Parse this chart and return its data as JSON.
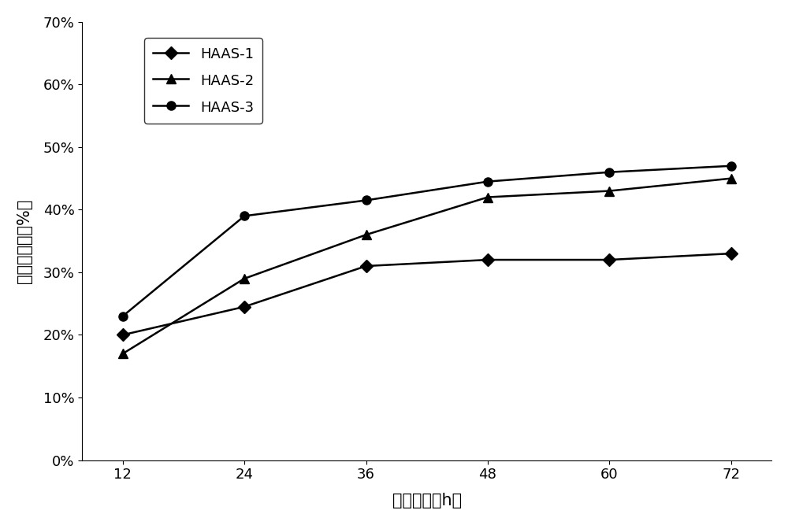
{
  "x": [
    12,
    24,
    36,
    48,
    60,
    72
  ],
  "series": [
    {
      "label": "HAAS-1",
      "values": [
        0.2,
        0.245,
        0.31,
        0.32,
        0.32,
        0.33
      ],
      "marker": "D",
      "color": "#000000",
      "markersize": 8,
      "linewidth": 1.8
    },
    {
      "label": "HAAS-2",
      "values": [
        0.17,
        0.29,
        0.36,
        0.42,
        0.43,
        0.45
      ],
      "marker": "^",
      "color": "#000000",
      "markersize": 9,
      "linewidth": 1.8
    },
    {
      "label": "HAAS-3",
      "values": [
        0.23,
        0.39,
        0.415,
        0.445,
        0.46,
        0.47
      ],
      "marker": "o",
      "color": "#000000",
      "markersize": 8,
      "linewidth": 1.8
    }
  ],
  "xlabel": "培养时间（h）",
  "ylabel": "氨气降解率（%）",
  "xlim": [
    8,
    76
  ],
  "ylim": [
    0.0,
    0.7
  ],
  "yticks": [
    0.0,
    0.1,
    0.2,
    0.3,
    0.4,
    0.5,
    0.6,
    0.7
  ],
  "xticks": [
    12,
    24,
    36,
    48,
    60,
    72
  ],
  "legend_fontsize": 13,
  "axis_label_fontsize": 15,
  "tick_label_fontsize": 13,
  "background_color": "#ffffff",
  "figsize": [
    10.0,
    6.67
  ],
  "dpi": 100
}
